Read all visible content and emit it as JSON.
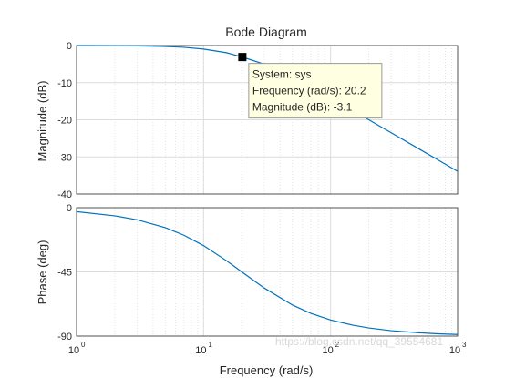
{
  "chart_data": {
    "type": "line",
    "title": "Bode Diagram",
    "xlabel": "Frequency  (rad/s)",
    "xscale": "log",
    "xlim": [
      1,
      1000
    ],
    "x_ticks": [
      {
        "value": 1,
        "base": "10",
        "exp": "0"
      },
      {
        "value": 10,
        "base": "10",
        "exp": "1"
      },
      {
        "value": 100,
        "base": "10",
        "exp": "2"
      },
      {
        "value": 1000,
        "base": "10",
        "exp": "3"
      }
    ],
    "grid": true,
    "panels": [
      {
        "name": "magnitude",
        "ylabel": "Magnitude (dB)",
        "ylim": [
          -40,
          0
        ],
        "yticks": [
          0,
          -10,
          -20,
          -30,
          -40
        ],
        "series": [
          {
            "color": "#0072bd",
            "x": [
              1,
              2,
              3,
              5,
              7,
              10,
              15,
              20.2,
              30,
              50,
              70,
              100,
              150,
              200,
              300,
              500,
              700,
              1000
            ],
            "y": [
              0,
              -0.04,
              -0.09,
              -0.25,
              -0.48,
              -0.95,
              -1.9,
              -3.1,
              -5.0,
              -8.4,
              -11.0,
              -14.0,
              -17.5,
              -20.0,
              -23.5,
              -27.9,
              -30.8,
              -33.9
            ]
          }
        ],
        "datatip": {
          "x": 20.2,
          "y": -3.1,
          "lines": [
            "System: sys",
            "Frequency (rad/s): 20.2",
            "Magnitude (dB): -3.1"
          ]
        }
      },
      {
        "name": "phase",
        "ylabel": "Phase (deg)",
        "ylim": [
          -90,
          0
        ],
        "yticks": [
          0,
          -45,
          -90
        ],
        "series": [
          {
            "color": "#0072bd",
            "x": [
              1,
              2,
              3,
              5,
              7,
              10,
              15,
              20,
              30,
              50,
              70,
              100,
              150,
              200,
              300,
              500,
              700,
              1000
            ],
            "y": [
              -2.8,
              -5.7,
              -8.5,
              -14.0,
              -19.3,
              -26.6,
              -36.9,
              -45.0,
              -56.3,
              -68.2,
              -74.1,
              -78.7,
              -82.4,
              -84.3,
              -86.2,
              -87.7,
              -88.4,
              -88.9
            ]
          }
        ]
      }
    ]
  },
  "watermark": "https://blog.csdn.net/qq_39554681"
}
